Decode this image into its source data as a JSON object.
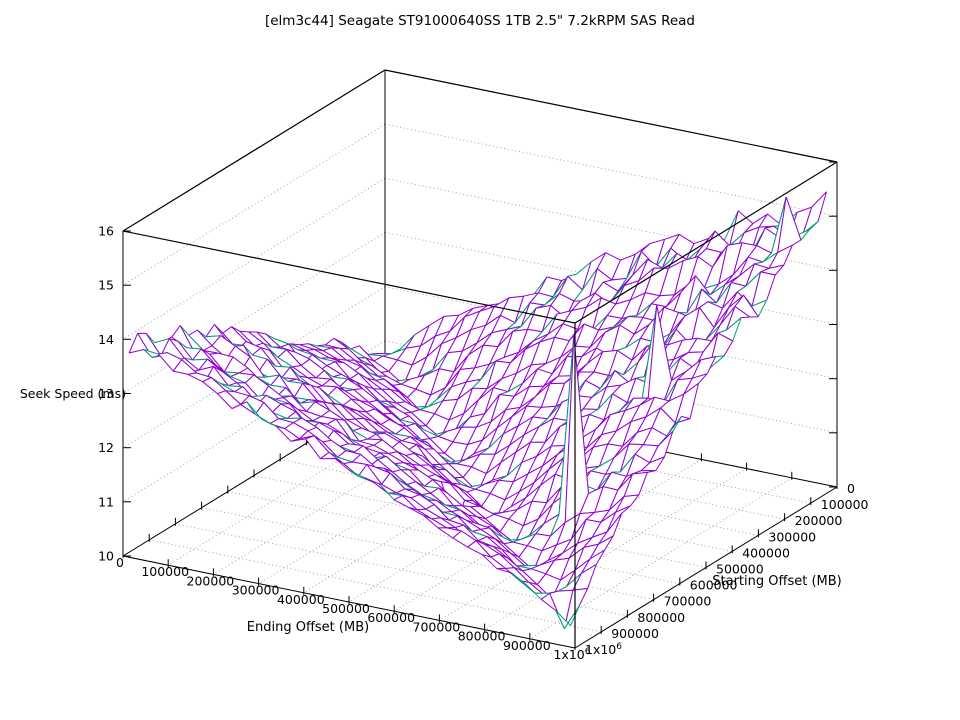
{
  "chart_data": {
    "type": "surface",
    "title": "[elm3c44] Seagate ST91000640SS 1TB 2.5\" 7.2kRPM SAS Read",
    "xlabel": "Ending Offset (MB)",
    "ylabel": "Starting Offset (MB)",
    "zlabel": "Seek Speed (ms)",
    "xlim": [
      0,
      1000000
    ],
    "ylim": [
      0,
      1000000
    ],
    "zlim": [
      10,
      16
    ],
    "xtick_labels": [
      "0",
      "100000",
      "200000",
      "300000",
      "400000",
      "500000",
      "600000",
      "700000",
      "800000",
      "900000",
      "1x10^6"
    ],
    "ytick_labels": [
      "0",
      "100000",
      "200000",
      "300000",
      "400000",
      "500000",
      "600000",
      "700000",
      "800000",
      "900000",
      "1x10^6"
    ],
    "ztick_labels": [
      "10",
      "11",
      "12",
      "13",
      "14",
      "15",
      "16"
    ],
    "grid_on": true,
    "legend": "none",
    "grid": {
      "x": [
        0,
        97676,
        195352,
        293029,
        390705,
        488381,
        586057,
        683734,
        781410,
        879086,
        976762
      ],
      "y": [
        0,
        97676,
        195352,
        293029,
        390705,
        488381,
        586057,
        683734,
        781410,
        879086,
        976762
      ],
      "z": [
        [
          10.67,
          11.39,
          11.92,
          12.4,
          12.84,
          13.26,
          13.67,
          14.07,
          14.47,
          14.84,
          15.22
        ],
        [
          11.18,
          10.64,
          11.36,
          11.9,
          12.38,
          12.82,
          13.25,
          13.66,
          14.06,
          14.45,
          14.84
        ],
        [
          11.55,
          11.15,
          10.6,
          11.33,
          11.87,
          12.35,
          12.8,
          13.22,
          13.63,
          14.03,
          14.42
        ],
        [
          11.88,
          11.52,
          11.12,
          10.57,
          11.3,
          11.84,
          12.32,
          12.77,
          13.19,
          13.6,
          14.01
        ],
        [
          12.19,
          11.86,
          11.5,
          11.09,
          10.53,
          11.27,
          11.81,
          12.3,
          12.74,
          13.16,
          13.57
        ],
        [
          12.55,
          12.17,
          11.83,
          11.47,
          11.05,
          10.5,
          11.24,
          11.78,
          12.27,
          12.71,
          13.13
        ],
        [
          12.9,
          12.47,
          12.15,
          11.81,
          11.44,
          11.02,
          10.46,
          11.2,
          11.76,
          12.24,
          12.67
        ],
        [
          13.25,
          12.76,
          12.45,
          12.12,
          11.78,
          11.41,
          10.99,
          10.43,
          11.17,
          11.72,
          12.19
        ],
        [
          13.45,
          13.05,
          12.73,
          12.42,
          12.09,
          11.76,
          11.38,
          10.96,
          10.39,
          11.14,
          11.67
        ],
        [
          13.75,
          13.32,
          13.02,
          12.71,
          12.39,
          12.07,
          11.73,
          11.35,
          10.92,
          10.36,
          11.09
        ],
        [
          13.87,
          13.58,
          13.29,
          12.99,
          12.68,
          12.36,
          12.02,
          11.68,
          11.3,
          10.88,
          10.32
        ]
      ]
    },
    "spikes": [
      {
        "x": 944000,
        "y": 98000,
        "z": 15.55
      },
      {
        "x": 814000,
        "y": 684000,
        "z": 14.5
      },
      {
        "x": 847000,
        "y": 423000,
        "z": 14.35
      },
      {
        "x": 944000,
        "y": 960000,
        "z": 10.1
      },
      {
        "x": 554000,
        "y": 684000,
        "z": 10.55
      }
    ],
    "mesh_cells": 30,
    "noise": 0.38,
    "colors": {
      "surface_top": "#9400d3",
      "surface_bottom": "#009e73",
      "axis": "#000000",
      "grid_line": "#8e8e8e",
      "background": "#ffffff"
    }
  }
}
